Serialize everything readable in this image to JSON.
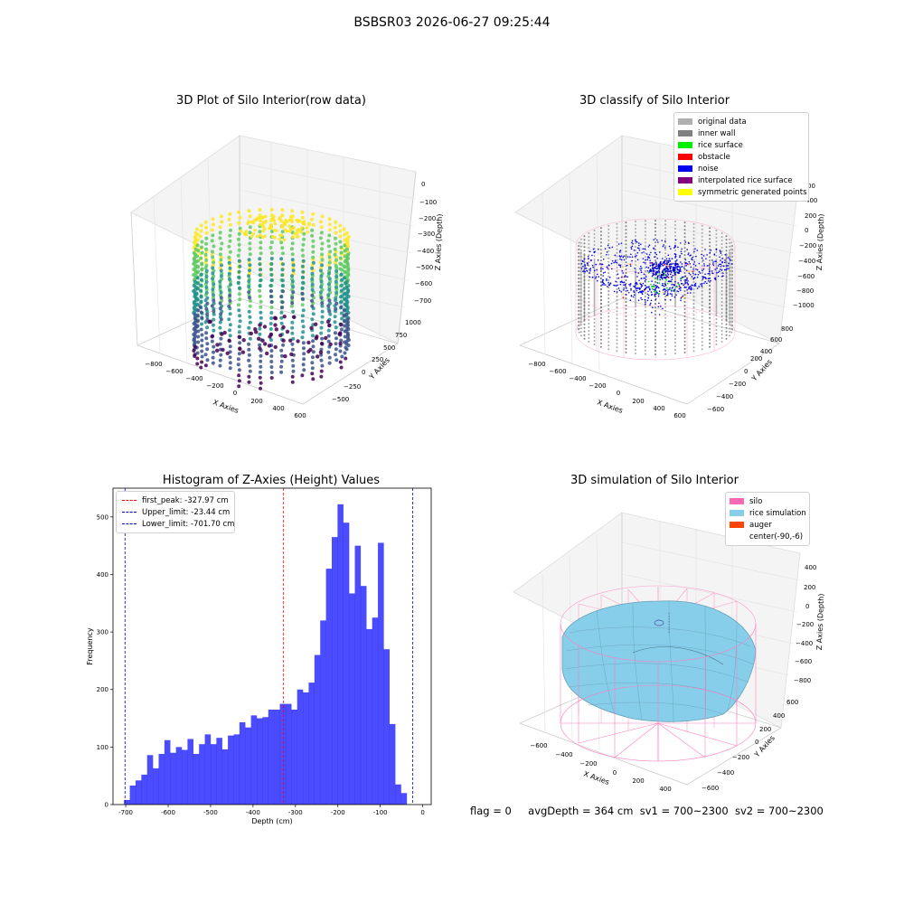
{
  "suptitle": "BSBSR03 2026-06-27 09:25:44",
  "footer": {
    "flag": "flag = 0",
    "avg_depth": "avgDepth = 364 cm",
    "sv1": "sv1 = 700~2300",
    "sv2": "sv2 = 700~2300"
  },
  "chart_data": [
    {
      "type": "scatter",
      "title": "3D Plot of Silo Interior(row data)",
      "xlabel": "X Axies",
      "ylabel": "Y Axies",
      "zlabel": "Z Axies (Depth)",
      "x_ticks": [
        "−800",
        "−600",
        "−400",
        "−200",
        "0",
        "200",
        "400",
        "600"
      ],
      "y_ticks": [
        "−500",
        "−250",
        "0",
        "250",
        "500",
        "750",
        "1000"
      ],
      "z_ticks": [
        "0",
        "−100",
        "−200",
        "−300",
        "−400",
        "−500",
        "−600",
        "−700"
      ],
      "colormap": "viridis"
    },
    {
      "type": "scatter",
      "title": "3D classify of Silo Interior",
      "xlabel": "X Axies",
      "ylabel": "Y Axies",
      "zlabel": "Z Axies (Depth)",
      "x_ticks": [
        "−800",
        "−600",
        "−400",
        "−200",
        "0",
        "200",
        "400",
        "600"
      ],
      "y_ticks": [
        "−600",
        "−400",
        "−200",
        "0",
        "200",
        "400",
        "600",
        "800"
      ],
      "z_ticks": [
        "400",
        "200",
        "0",
        "−200",
        "−400",
        "−600",
        "−800",
        "−1000"
      ],
      "z_ticks_partial": [
        "00"
      ],
      "legend": [
        {
          "label": "original data",
          "color": "#b0b0b0"
        },
        {
          "label": "inner wall",
          "color": "#808080"
        },
        {
          "label": "rice surface",
          "color": "#00ee00"
        },
        {
          "label": "obstacle",
          "color": "#ff0000"
        },
        {
          "label": "noise",
          "color": "#0000ee"
        },
        {
          "label": "interpolated rice surface",
          "color": "#800080"
        },
        {
          "label": "symmetric generated points",
          "color": "#ffff00"
        }
      ]
    },
    {
      "type": "bar",
      "title": "Histogram of Z-Axies (Height) Values",
      "xlabel": "Depth (cm)",
      "ylabel": "Frequency",
      "xlim": [
        -730,
        20
      ],
      "ylim": [
        0,
        550
      ],
      "x_ticks": [
        -700,
        -600,
        -500,
        -400,
        -300,
        -200,
        -100,
        0
      ],
      "y_ticks": [
        0,
        100,
        200,
        300,
        400,
        500
      ],
      "bar_color": "#0000ff",
      "bin_start": -704,
      "bin_width": 13.6,
      "values": [
        8,
        33,
        42,
        52,
        86,
        63,
        88,
        112,
        90,
        100,
        95,
        114,
        88,
        105,
        122,
        105,
        116,
        96,
        120,
        122,
        143,
        134,
        155,
        150,
        152,
        165,
        165,
        175,
        175,
        165,
        200,
        195,
        212,
        260,
        320,
        410,
        465,
        522,
        490,
        367,
        450,
        380,
        305,
        325,
        455,
        270,
        140,
        35,
        20
      ],
      "vlines": [
        {
          "label": "first_peak: -327.97 cm",
          "x": -327.97,
          "color": "#ff0000"
        },
        {
          "label": "Upper_limit: -23.44 cm",
          "x": -23.44,
          "color": "#0000cc"
        },
        {
          "label": "Lower_limit: -701.70 cm",
          "x": -701.7,
          "color": "#0000cc"
        }
      ]
    },
    {
      "type": "other",
      "title": "3D simulation of Silo Interior",
      "xlabel": "X Axies",
      "ylabel": "Y Axies",
      "zlabel": "Z Axies (Depth)",
      "x_ticks": [
        "−600",
        "−400",
        "−200",
        "0",
        "200",
        "400"
      ],
      "y_ticks": [
        "−600",
        "−400",
        "−200",
        "0",
        "200",
        "400",
        "600"
      ],
      "z_ticks": [
        "400",
        "200",
        "0",
        "−200",
        "−400",
        "−600",
        "−800"
      ],
      "legend": [
        {
          "label": "silo",
          "color": "#ff69b4"
        },
        {
          "label": "rice simulation",
          "color": "#87ceeb"
        },
        {
          "label": "auger",
          "color": "#ff4500"
        },
        {
          "label": "center(-90,-6)",
          "color": ""
        }
      ]
    }
  ]
}
